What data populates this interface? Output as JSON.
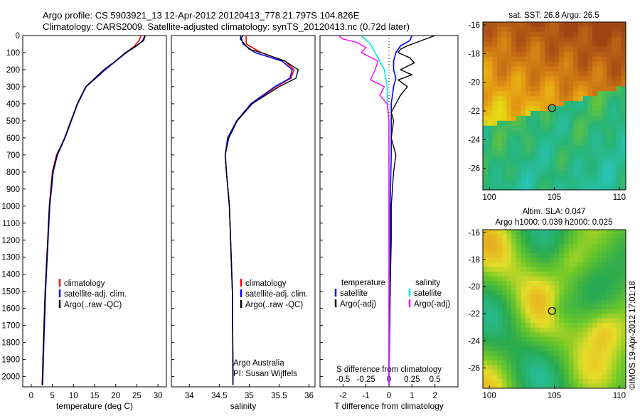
{
  "header": {
    "title_line1": "Argo profile: CS 5903921_13 12-Apr-2012 20120413_778 21.797S 104.826E",
    "title_line2": "Climatology: CARS2009. Satellite-adjusted climatology: synTS_20120413.nc (0.72d later)"
  },
  "colors": {
    "climatology": "#ff0000",
    "satellite": "#0000ff",
    "argo": "#000000",
    "sat_salinity": "#00e5ee",
    "argo_salinity": "#ff00ff"
  },
  "depth_axis": {
    "ticks": [
      0,
      100,
      200,
      300,
      400,
      500,
      600,
      700,
      800,
      900,
      1000,
      1100,
      1200,
      1300,
      1400,
      1500,
      1600,
      1700,
      1800,
      1900,
      2000
    ],
    "range": [
      0,
      2060
    ]
  },
  "temperature_panel": {
    "xlabel": "temperature (deg C)",
    "xticks": [
      0,
      5,
      10,
      15,
      20,
      25,
      30
    ],
    "xrange": [
      -2,
      32
    ],
    "legend": [
      "climatology",
      "satellite-adj. clim.",
      "Argo(..raw -QC)"
    ],
    "chart_data": {
      "type": "line",
      "series": [
        {
          "name": "climatology",
          "depth": [
            0,
            30,
            60,
            100,
            150,
            200,
            300,
            400,
            500,
            600,
            700,
            800,
            1000,
            1200,
            1500,
            1800,
            2050
          ],
          "values": [
            26.0,
            25.5,
            24.5,
            22.5,
            20.0,
            17.5,
            13.0,
            11.0,
            9.5,
            8.0,
            6.0,
            5.0,
            4.3,
            3.9,
            3.3,
            2.9,
            2.6
          ]
        },
        {
          "name": "satellite-adj. clim.",
          "depth": [
            0,
            30,
            60,
            100,
            150,
            200,
            300,
            400,
            500,
            600,
            700,
            800,
            1000,
            1200,
            1500,
            1800,
            2050
          ],
          "values": [
            26.9,
            26.4,
            25.0,
            22.5,
            20.0,
            17.5,
            13.0,
            11.0,
            9.5,
            8.0,
            6.2,
            5.2,
            4.4,
            4.0,
            3.4,
            3.0,
            2.7
          ]
        },
        {
          "name": "Argo(..raw -QC)",
          "depth": [
            0,
            30,
            60,
            100,
            150,
            200,
            300,
            400,
            500,
            600,
            700,
            800,
            1000,
            1200,
            1500,
            1800,
            2050
          ],
          "values": [
            27.0,
            26.6,
            24.9,
            22.3,
            19.9,
            17.2,
            12.9,
            10.9,
            9.4,
            7.9,
            6.1,
            5.1,
            4.3,
            3.9,
            3.3,
            2.9,
            2.6
          ]
        }
      ]
    }
  },
  "salinity_panel": {
    "xlabel": "salinity",
    "xticks": [
      34,
      34.5,
      35,
      35.5,
      36
    ],
    "xrange": [
      33.7,
      36.1
    ],
    "legend": [
      "climatology",
      "satellite-adj. clim.",
      "Argo(..raw -QC)"
    ],
    "credit_line1": "Argo Australia",
    "credit_line2": "PI: Susan Wijffels",
    "chart_data": {
      "type": "line",
      "series": [
        {
          "name": "climatology",
          "depth": [
            0,
            50,
            100,
            150,
            200,
            250,
            300,
            400,
            500,
            600,
            700,
            800,
            1000,
            1500,
            2050
          ],
          "values": [
            34.95,
            34.95,
            35.2,
            35.6,
            35.75,
            35.7,
            35.45,
            35.05,
            34.8,
            34.65,
            34.6,
            34.62,
            34.67,
            34.72,
            34.73
          ]
        },
        {
          "name": "satellite-adj. clim.",
          "depth": [
            0,
            50,
            100,
            150,
            200,
            250,
            300,
            400,
            500,
            600,
            700,
            800,
            1000,
            1500,
            2050
          ],
          "values": [
            34.85,
            34.9,
            35.1,
            35.55,
            35.72,
            35.68,
            35.43,
            35.03,
            34.79,
            34.64,
            34.6,
            34.62,
            34.67,
            34.72,
            34.73
          ]
        },
        {
          "name": "Argo(..raw -QC)",
          "depth": [
            0,
            20,
            50,
            80,
            100,
            150,
            200,
            250,
            300,
            400,
            500,
            600,
            700,
            800,
            1000,
            1500,
            2050
          ],
          "values": [
            34.9,
            34.85,
            34.92,
            35.0,
            35.2,
            35.6,
            35.82,
            35.78,
            35.5,
            35.05,
            34.8,
            34.66,
            34.6,
            34.62,
            34.67,
            34.72,
            34.73
          ]
        }
      ]
    }
  },
  "difference_panel": {
    "xlabel_top": "S difference from climatology",
    "xlabel_bottom": "T difference from climatology",
    "top_ticks": [
      "-0.5",
      "-0.25",
      "0",
      "0.25",
      "0.5"
    ],
    "top_tick_values": [
      -0.5,
      -0.25,
      0,
      0.25,
      0.5
    ],
    "bottom_ticks": [
      -2,
      -1,
      0,
      1,
      2
    ],
    "xrange": [
      -3,
      3
    ],
    "legend_temperature_header": "temperature",
    "legend_salinity_header": "salinity",
    "legend_temperature": [
      "satellite",
      "Argo(-adj)"
    ],
    "legend_salinity": [
      "satellite",
      "Argo(-adj)"
    ],
    "chart_data": {
      "type": "line",
      "series": [
        {
          "name": "temperature satellite",
          "depth": [
            0,
            30,
            60,
            100,
            150,
            200,
            250,
            300,
            400,
            500,
            700,
            1000,
            1500,
            2050
          ],
          "values": [
            1.0,
            0.9,
            0.5,
            0.3,
            0.2,
            0.2,
            0.3,
            0.2,
            0.1,
            0.1,
            0.1,
            0.05,
            0.05,
            0.0
          ]
        },
        {
          "name": "temperature Argo(-adj)",
          "depth": [
            0,
            20,
            40,
            60,
            80,
            100,
            130,
            160,
            200,
            230,
            260,
            300,
            350,
            400,
            450,
            500,
            600,
            700,
            800,
            1000,
            1200,
            1500,
            1800,
            2050
          ],
          "values": [
            2.0,
            1.6,
            1.2,
            0.8,
            0.5,
            0.4,
            0.9,
            1.1,
            0.5,
            1.0,
            0.4,
            0.8,
            0.5,
            0.3,
            0.1,
            0.2,
            0.1,
            0.3,
            0.2,
            0.1,
            0.1,
            0.05,
            0.0,
            0.0
          ]
        },
        {
          "name": "salinity satellite",
          "depth": [
            0,
            50,
            100,
            150,
            200,
            300,
            400,
            500,
            700,
            1000,
            1500,
            2050
          ],
          "values": [
            -0.3,
            -0.2,
            -0.15,
            -0.1,
            -0.05,
            -0.02,
            -0.02,
            0.0,
            0.0,
            0.0,
            0.0,
            0.0
          ]
        },
        {
          "name": "salinity Argo(-adj)",
          "depth": [
            0,
            20,
            40,
            70,
            100,
            150,
            200,
            260,
            300,
            350,
            400,
            500,
            700,
            1000,
            1500,
            2050
          ],
          "values": [
            -0.55,
            -0.5,
            -0.35,
            -0.25,
            -0.3,
            -0.12,
            -0.15,
            -0.2,
            -0.05,
            -0.1,
            -0.02,
            0.0,
            0.0,
            0.0,
            0.0,
            0.0
          ]
        }
      ]
    }
  },
  "sst_map": {
    "title": "sat. SST: 26.8 Argo: 26.5",
    "yticks": [
      -16,
      -18,
      -20,
      -22,
      -24,
      -26
    ],
    "xticks": [
      100,
      105,
      110
    ],
    "xrange": [
      99.5,
      110.5
    ],
    "yrange": [
      -27.5,
      -15.8
    ],
    "float_position": {
      "lon": 104.826,
      "lat": -21.797
    }
  },
  "sla_map": {
    "title_line1": "Altim. SLA: 0.047",
    "title_line2": "Argo h1000: 0.039 h2000: 0.025",
    "yticks": [
      -16,
      -18,
      -20,
      -22,
      -24,
      -26
    ],
    "xticks": [
      100,
      105,
      110
    ],
    "xrange": [
      99.5,
      110.5
    ],
    "yrange": [
      -27.5,
      -15.8
    ],
    "float_position": {
      "lon": 104.826,
      "lat": -21.797
    }
  },
  "footer": {
    "stamp": "©IMOS 19-Apr-2012 17:01:18"
  }
}
